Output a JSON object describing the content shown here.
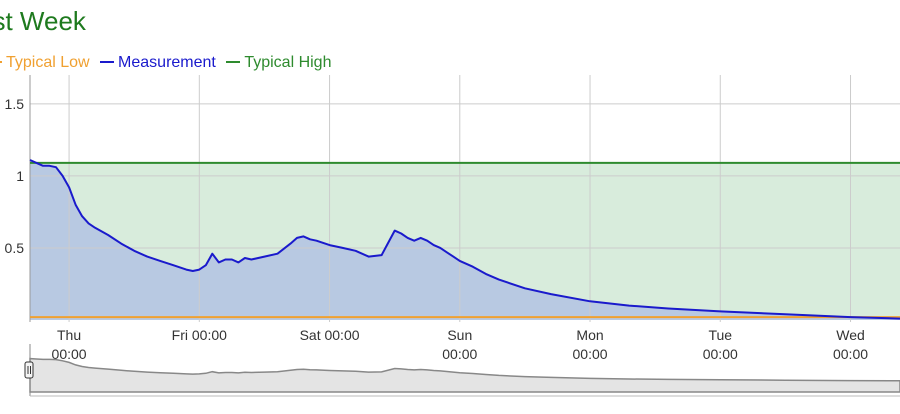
{
  "title": "ast Week",
  "colors": {
    "typical_low": "#f0a030",
    "measurement": "#1a1acc",
    "typical_high": "#2e8b2e",
    "band_fill": "#d8ecdc",
    "area_fill": "#b8c9e2",
    "grid": "#cccccc",
    "navigator_line": "#888888",
    "navigator_fill": "#e4e4e4"
  },
  "legend": [
    {
      "label": "Typical Low",
      "color": "#f0a030"
    },
    {
      "label": "Measurement",
      "color": "#1a1acc"
    },
    {
      "label": "Typical High",
      "color": "#2e8b2e"
    }
  ],
  "chart_data": {
    "type": "area",
    "ylim": [
      0,
      1.7
    ],
    "xlim": [
      -0.3,
      6.38
    ],
    "y_ticks": [
      0.5,
      1,
      1.5
    ],
    "y_tick_labels": [
      "0.5",
      "1",
      "1.5"
    ],
    "x_ticks": [
      {
        "x": 0,
        "label": [
          "Thu",
          "00:00"
        ]
      },
      {
        "x": 1,
        "label": [
          "Fri 00:00"
        ]
      },
      {
        "x": 2,
        "label": [
          "Sat 00:00"
        ]
      },
      {
        "x": 3,
        "label": [
          "Sun",
          "00:00"
        ]
      },
      {
        "x": 4,
        "label": [
          "Mon",
          "00:00"
        ]
      },
      {
        "x": 5,
        "label": [
          "Tue",
          "00:00"
        ]
      },
      {
        "x": 6,
        "label": [
          "Wed",
          "00:00"
        ]
      }
    ],
    "series": [
      {
        "name": "Typical Low",
        "x": [
          -0.3,
          6.38
        ],
        "values": [
          0.02,
          0.02
        ]
      },
      {
        "name": "Typical High",
        "x": [
          -0.3,
          6.38
        ],
        "values": [
          1.09,
          1.09
        ]
      },
      {
        "name": "Measurement",
        "x": [
          -0.3,
          -0.25,
          -0.2,
          -0.15,
          -0.1,
          -0.05,
          0.0,
          0.05,
          0.1,
          0.15,
          0.2,
          0.3,
          0.4,
          0.5,
          0.6,
          0.7,
          0.8,
          0.9,
          0.95,
          1.0,
          1.05,
          1.1,
          1.15,
          1.2,
          1.25,
          1.3,
          1.35,
          1.4,
          1.5,
          1.6,
          1.7,
          1.75,
          1.8,
          1.85,
          1.9,
          2.0,
          2.1,
          2.2,
          2.3,
          2.4,
          2.5,
          2.55,
          2.6,
          2.65,
          2.7,
          2.75,
          2.8,
          2.85,
          2.9,
          2.95,
          3.0,
          3.1,
          3.2,
          3.3,
          3.5,
          3.7,
          4.0,
          4.3,
          4.6,
          5.0,
          5.5,
          6.0,
          6.38
        ],
        "values": [
          1.11,
          1.09,
          1.07,
          1.07,
          1.06,
          1.0,
          0.92,
          0.8,
          0.72,
          0.67,
          0.64,
          0.59,
          0.53,
          0.48,
          0.44,
          0.41,
          0.38,
          0.35,
          0.34,
          0.35,
          0.38,
          0.46,
          0.4,
          0.42,
          0.42,
          0.4,
          0.43,
          0.42,
          0.44,
          0.46,
          0.53,
          0.57,
          0.58,
          0.56,
          0.55,
          0.52,
          0.5,
          0.48,
          0.44,
          0.45,
          0.62,
          0.6,
          0.57,
          0.55,
          0.57,
          0.55,
          0.52,
          0.5,
          0.47,
          0.44,
          0.41,
          0.37,
          0.32,
          0.28,
          0.22,
          0.18,
          0.13,
          0.1,
          0.08,
          0.06,
          0.04,
          0.02,
          0.01
        ]
      }
    ]
  }
}
